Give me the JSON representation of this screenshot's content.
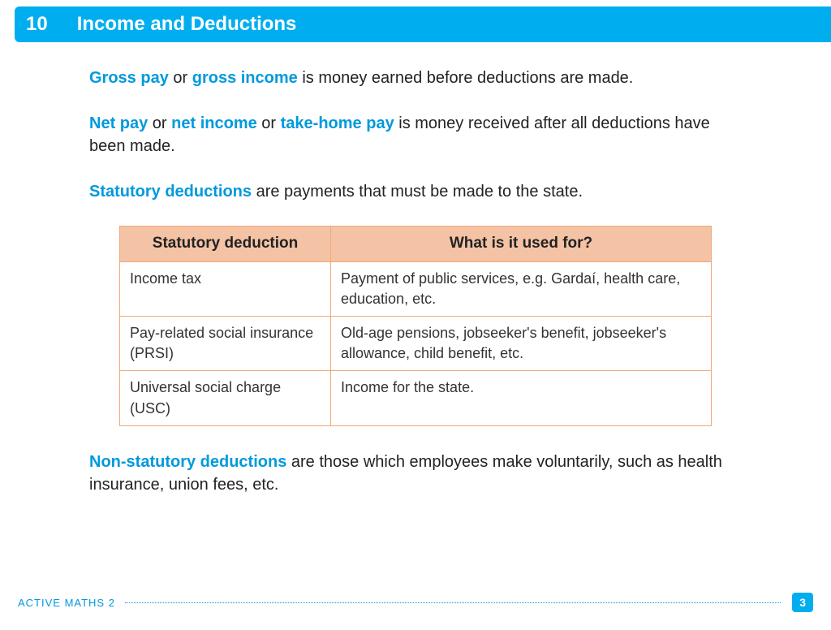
{
  "header": {
    "chapter_number": "10",
    "title": "Income and Deductions"
  },
  "colors": {
    "accent": "#00aeef",
    "term": "#0099dd",
    "table_header_bg": "#f4c3a5",
    "table_border": "#f0a87a",
    "background": "#ffffff"
  },
  "paragraphs": {
    "p1": {
      "term1": "Gross pay",
      "mid1": " or ",
      "term2": "gross income",
      "rest": " is money earned before deductions are made."
    },
    "p2": {
      "term1": "Net pay",
      "mid1": " or ",
      "term2": "net income",
      "mid2": " or ",
      "term3": "take-home pay",
      "rest": " is money received after all deductions have been made."
    },
    "p3": {
      "term1": "Statutory deductions",
      "rest": " are payments that must be made to the state."
    },
    "p4": {
      "term1": "Non-statutory deductions",
      "rest": " are those which employees make voluntarily, such as health insurance, union fees, etc."
    }
  },
  "table": {
    "columns": [
      "Statutory deduction",
      "What is it used for?"
    ],
    "rows": [
      [
        "Income tax",
        "Payment of public services, e.g. Gardaí, health care, education, etc."
      ],
      [
        "Pay-related social insurance (PRSI)",
        "Old-age pensions, jobseeker's benefit, jobseeker's allowance, child benefit, etc."
      ],
      [
        "Universal social charge (USC)",
        "Income for the state."
      ]
    ]
  },
  "footer": {
    "label": "ACTIVE MATHS  2",
    "page": "3"
  }
}
